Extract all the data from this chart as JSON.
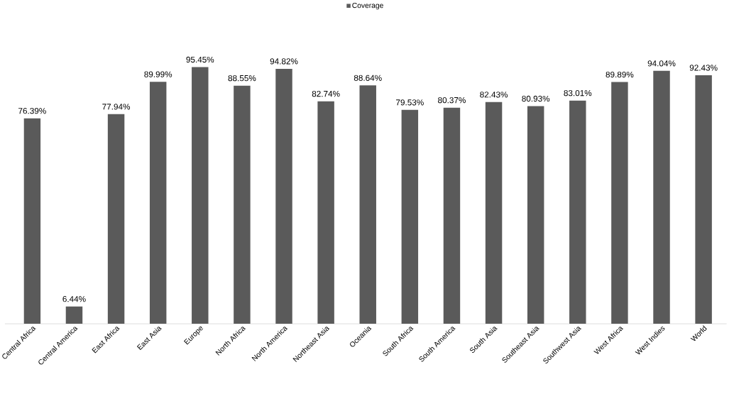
{
  "chart_data": {
    "type": "bar",
    "categories": [
      "Central Africa",
      "Central America",
      "East Africa",
      "East Asia",
      "Europe",
      "North Africa",
      "North America",
      "Northeast Asia",
      "Oceania",
      "South Africa",
      "South America",
      "South Asia",
      "Southeast Asia",
      "Southwest Asia",
      "West Africa",
      "West Indies",
      "World"
    ],
    "series": [
      {
        "name": "Coverage",
        "color": "#5a5a5a",
        "values": [
          76.39,
          6.44,
          77.94,
          89.99,
          95.45,
          88.55,
          94.82,
          82.74,
          88.64,
          79.53,
          80.37,
          82.43,
          80.93,
          83.01,
          89.89,
          94.04,
          92.43
        ],
        "value_labels": [
          "76.39%",
          "6.44%",
          "77.94%",
          "89.99%",
          "95.45%",
          "88.55%",
          "94.82%",
          "82.74%",
          "88.64%",
          "79.53%",
          "80.37%",
          "82.43%",
          "80.93%",
          "83.01%",
          "89.89%",
          "94.04%",
          "92.43%"
        ]
      }
    ],
    "legend": "top",
    "grid": false
  }
}
